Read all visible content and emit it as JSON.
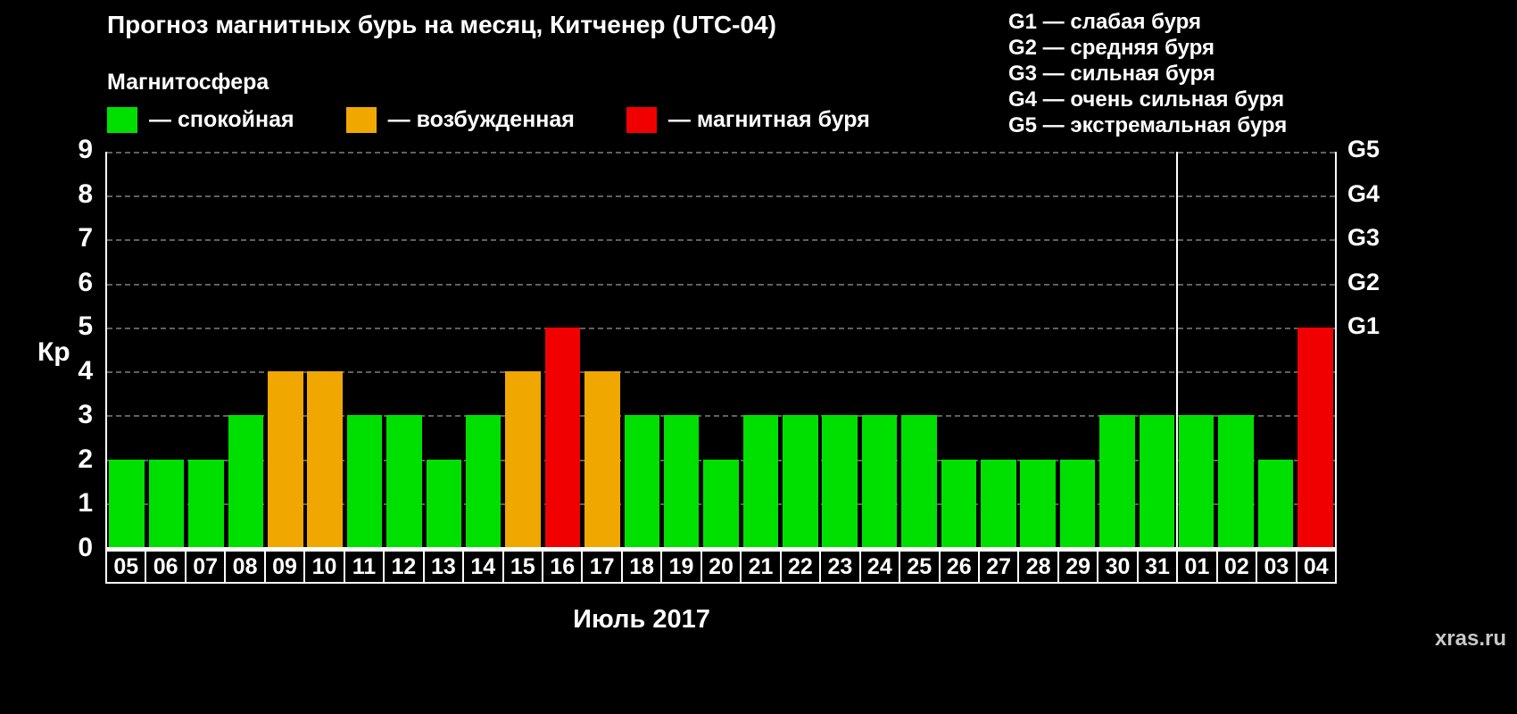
{
  "subtitle": "Магнитосфера",
  "watermark": "xras.ru",
  "colors": {
    "quiet": "#00e000",
    "excited": "#f0a800",
    "storm": "#f00000",
    "background": "#000000",
    "text": "#ffffff",
    "grid": "#606060",
    "axis": "#ffffff"
  },
  "legend": {
    "items": [
      {
        "status": "quiet",
        "label": "— спокойная"
      },
      {
        "status": "excited",
        "label": "— возбужденная"
      },
      {
        "status": "storm",
        "label": "— магнитная буря"
      }
    ]
  },
  "g_legend": [
    "G1 — слабая буря",
    "G2 — средняя буря",
    "G3 — сильная буря",
    "G4 — очень сильная буря",
    "G5 — экстремальная буря"
  ],
  "chart_data": {
    "type": "bar",
    "title": "Прогноз магнитных бурь на месяц, Китченер (UTC-04)",
    "xlabel": "Июль 2017",
    "ylabel": "Кр",
    "categories": [
      "05",
      "06",
      "07",
      "08",
      "09",
      "10",
      "11",
      "12",
      "13",
      "14",
      "15",
      "16",
      "17",
      "18",
      "19",
      "20",
      "21",
      "22",
      "23",
      "24",
      "25",
      "26",
      "27",
      "28",
      "29",
      "30",
      "31",
      "01",
      "02",
      "03",
      "04"
    ],
    "values": [
      2,
      2,
      2,
      3,
      4,
      4,
      3,
      3,
      2,
      3,
      4,
      5,
      4,
      3,
      3,
      2,
      3,
      3,
      3,
      3,
      3,
      2,
      2,
      2,
      2,
      3,
      3,
      3,
      3,
      2,
      5
    ],
    "statuses": [
      "quiet",
      "quiet",
      "quiet",
      "quiet",
      "excited",
      "excited",
      "quiet",
      "quiet",
      "quiet",
      "quiet",
      "excited",
      "storm",
      "excited",
      "quiet",
      "quiet",
      "quiet",
      "quiet",
      "quiet",
      "quiet",
      "quiet",
      "quiet",
      "quiet",
      "quiet",
      "quiet",
      "quiet",
      "quiet",
      "quiet",
      "quiet",
      "quiet",
      "quiet",
      "storm"
    ],
    "ylim": [
      0,
      9
    ],
    "yticks": [
      0,
      1,
      2,
      3,
      4,
      5,
      6,
      7,
      8,
      9
    ],
    "right_axis": [
      {
        "label": "G1",
        "kp": 5
      },
      {
        "label": "G2",
        "kp": 6
      },
      {
        "label": "G3",
        "kp": 7
      },
      {
        "label": "G4",
        "kp": 8
      },
      {
        "label": "G5",
        "kp": 9
      }
    ],
    "month_separator_after_index": 26,
    "grid": "dashed horizontal",
    "legend_position": "top-left"
  }
}
